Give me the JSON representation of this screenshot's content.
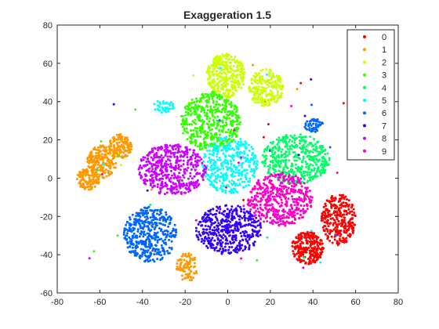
{
  "chart_data": {
    "type": "scatter",
    "title": "Exaggeration 1.5",
    "xlabel": "",
    "ylabel": "",
    "xlim": [
      -80,
      80
    ],
    "ylim": [
      -60,
      80
    ],
    "xticks": [
      -80,
      -60,
      -40,
      -20,
      0,
      20,
      40,
      60,
      80
    ],
    "yticks": [
      -60,
      -40,
      -20,
      0,
      20,
      40,
      60,
      80
    ],
    "grid": false,
    "legend": {
      "placement": "top-right"
    },
    "series": [
      {
        "name": "0",
        "color": "#ff0000",
        "clusters": [
          {
            "x": [
              30,
              45
            ],
            "y": [
              -45,
              -28
            ],
            "n": 260
          },
          {
            "x": [
              44,
              60
            ],
            "y": [
              -35,
              -8
            ],
            "n": 300
          }
        ]
      },
      {
        "name": "1",
        "color": "#ff9900",
        "clusters": [
          {
            "x": [
              -71,
              -60
            ],
            "y": [
              -6,
              5
            ],
            "n": 120
          },
          {
            "x": [
              -66,
              -52
            ],
            "y": [
              0,
              17
            ],
            "n": 200
          },
          {
            "x": [
              -56,
              -45
            ],
            "y": [
              10,
              23
            ],
            "n": 130
          },
          {
            "x": [
              -24,
              -14
            ],
            "y": [
              -54,
              -39
            ],
            "n": 90
          }
        ]
      },
      {
        "name": "2",
        "color": "#ccff00",
        "clusters": [
          {
            "x": [
              -10,
              8
            ],
            "y": [
              42,
              65
            ],
            "n": 330
          },
          {
            "x": [
              10,
              26
            ],
            "y": [
              37,
              57
            ],
            "n": 220
          }
        ]
      },
      {
        "name": "3",
        "color": "#33ff00",
        "clusters": [
          {
            "x": [
              -22,
              6
            ],
            "y": [
              14,
              45
            ],
            "n": 480
          }
        ]
      },
      {
        "name": "4",
        "color": "#00ff66",
        "clusters": [
          {
            "x": [
              16,
              48
            ],
            "y": [
              -3,
              23
            ],
            "n": 450
          }
        ]
      },
      {
        "name": "5",
        "color": "#00ffff",
        "clusters": [
          {
            "x": [
              -12,
              14
            ],
            "y": [
              -8,
              22
            ],
            "n": 380
          },
          {
            "x": [
              -35,
              -25
            ],
            "y": [
              34,
              41
            ],
            "n": 40
          }
        ]
      },
      {
        "name": "6",
        "color": "#0066ff",
        "clusters": [
          {
            "x": [
              -49,
              -24
            ],
            "y": [
              -44,
              -15
            ],
            "n": 430
          },
          {
            "x": [
              36,
              45
            ],
            "y": [
              24,
              31
            ],
            "n": 50
          }
        ]
      },
      {
        "name": "7",
        "color": "#3300ff",
        "clusters": [
          {
            "x": [
              -15,
              16
            ],
            "y": [
              -40,
              -14
            ],
            "n": 450
          }
        ]
      },
      {
        "name": "8",
        "color": "#cc00ff",
        "clusters": [
          {
            "x": [
              -42,
              -10
            ],
            "y": [
              -9,
              18
            ],
            "n": 470
          }
        ]
      },
      {
        "name": "9",
        "color": "#ff00cc",
        "clusters": [
          {
            "x": [
              9,
              40
            ],
            "y": [
              -25,
              3
            ],
            "n": 470
          }
        ]
      }
    ]
  }
}
